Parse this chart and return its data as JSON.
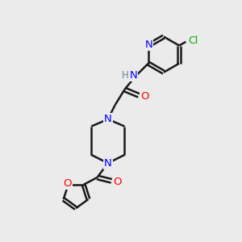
{
  "background_color": "#ebebeb",
  "bond_color": "#1a1a1a",
  "nitrogen_color": "#0000ff",
  "oxygen_color": "#ff0000",
  "chlorine_color": "#00aa00",
  "hydrogen_color": "#708090",
  "figsize": [
    3.0,
    3.0
  ],
  "dpi": 100,
  "xlim": [
    0,
    10
  ],
  "ylim": [
    0,
    10
  ]
}
